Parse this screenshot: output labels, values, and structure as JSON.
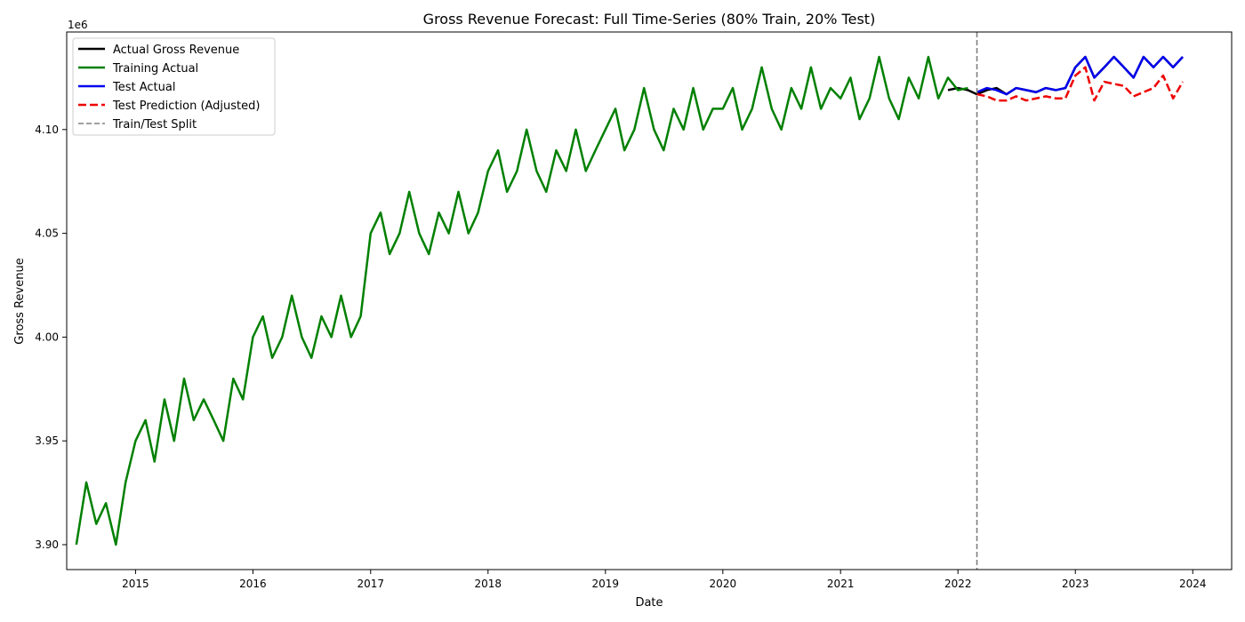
{
  "chart_data": {
    "type": "line",
    "title": "Gross Revenue Forecast: Full Time-Series (80% Train, 20% Test)",
    "xlabel": "Date",
    "ylabel": "Gross Revenue",
    "y_offset_label": "1e6",
    "xlim": [
      "2014-06-01",
      "2024-05-01"
    ],
    "ylim": [
      3.888,
      4.147
    ],
    "y_ticks": [
      3.9,
      3.95,
      4.0,
      4.05,
      4.1
    ],
    "y_tick_labels": [
      "3.90",
      "3.95",
      "4.00",
      "4.05",
      "4.10"
    ],
    "x_ticks": [
      "2015-01-01",
      "2016-01-01",
      "2017-01-01",
      "2018-01-01",
      "2019-01-01",
      "2020-01-01",
      "2021-01-01",
      "2022-01-01",
      "2023-01-01",
      "2024-01-01"
    ],
    "x_tick_labels": [
      "2015",
      "2016",
      "2017",
      "2018",
      "2019",
      "2020",
      "2021",
      "2022",
      "2023",
      "2024"
    ],
    "grid": false,
    "legend_position": "top-left",
    "split_date": "2022-03-01",
    "series": [
      {
        "name": "Actual Gross Revenue",
        "color": "#000000",
        "dash": "solid",
        "points": [
          [
            "2021-12-01",
            4.119
          ],
          [
            "2022-01-01",
            4.12
          ],
          [
            "2022-02-01",
            4.119
          ],
          [
            "2022-03-01",
            4.117
          ],
          [
            "2022-04-01",
            4.119
          ],
          [
            "2022-05-01",
            4.12
          ],
          [
            "2022-06-01",
            4.117
          ],
          [
            "2022-07-01",
            4.12
          ],
          [
            "2022-08-01",
            4.119
          ],
          [
            "2022-09-01",
            4.118
          ],
          [
            "2022-10-01",
            4.12
          ],
          [
            "2022-11-01",
            4.119
          ],
          [
            "2022-12-01",
            4.12
          ],
          [
            "2023-01-01",
            4.13
          ],
          [
            "2023-02-01",
            4.135
          ],
          [
            "2023-03-01",
            4.125
          ],
          [
            "2023-04-01",
            4.13
          ],
          [
            "2023-05-01",
            4.135
          ],
          [
            "2023-06-01",
            4.13
          ],
          [
            "2023-07-01",
            4.125
          ],
          [
            "2023-08-01",
            4.135
          ],
          [
            "2023-09-01",
            4.13
          ],
          [
            "2023-10-01",
            4.135
          ],
          [
            "2023-11-01",
            4.13
          ],
          [
            "2023-12-01",
            4.135
          ]
        ]
      },
      {
        "name": "Training Actual",
        "color": "#008000",
        "dash": "solid",
        "points": [
          [
            "2014-07-01",
            3.9
          ],
          [
            "2014-08-01",
            3.93
          ],
          [
            "2014-09-01",
            3.91
          ],
          [
            "2014-10-01",
            3.92
          ],
          [
            "2014-11-01",
            3.9
          ],
          [
            "2014-12-01",
            3.93
          ],
          [
            "2015-01-01",
            3.95
          ],
          [
            "2015-02-01",
            3.96
          ],
          [
            "2015-03-01",
            3.94
          ],
          [
            "2015-04-01",
            3.97
          ],
          [
            "2015-05-01",
            3.95
          ],
          [
            "2015-06-01",
            3.98
          ],
          [
            "2015-07-01",
            3.96
          ],
          [
            "2015-08-01",
            3.97
          ],
          [
            "2015-09-01",
            3.96
          ],
          [
            "2015-10-01",
            3.95
          ],
          [
            "2015-11-01",
            3.98
          ],
          [
            "2015-12-01",
            3.97
          ],
          [
            "2016-01-01",
            4.0
          ],
          [
            "2016-02-01",
            4.01
          ],
          [
            "2016-03-01",
            3.99
          ],
          [
            "2016-04-01",
            4.0
          ],
          [
            "2016-05-01",
            4.02
          ],
          [
            "2016-06-01",
            4.0
          ],
          [
            "2016-07-01",
            3.99
          ],
          [
            "2016-08-01",
            4.01
          ],
          [
            "2016-09-01",
            4.0
          ],
          [
            "2016-10-01",
            4.02
          ],
          [
            "2016-11-01",
            4.0
          ],
          [
            "2016-12-01",
            4.01
          ],
          [
            "2017-01-01",
            4.05
          ],
          [
            "2017-02-01",
            4.06
          ],
          [
            "2017-03-01",
            4.04
          ],
          [
            "2017-04-01",
            4.05
          ],
          [
            "2017-05-01",
            4.07
          ],
          [
            "2017-06-01",
            4.05
          ],
          [
            "2017-07-01",
            4.04
          ],
          [
            "2017-08-01",
            4.06
          ],
          [
            "2017-09-01",
            4.05
          ],
          [
            "2017-10-01",
            4.07
          ],
          [
            "2017-11-01",
            4.05
          ],
          [
            "2017-12-01",
            4.06
          ],
          [
            "2018-01-01",
            4.08
          ],
          [
            "2018-02-01",
            4.09
          ],
          [
            "2018-03-01",
            4.07
          ],
          [
            "2018-04-01",
            4.08
          ],
          [
            "2018-05-01",
            4.1
          ],
          [
            "2018-06-01",
            4.08
          ],
          [
            "2018-07-01",
            4.07
          ],
          [
            "2018-08-01",
            4.09
          ],
          [
            "2018-09-01",
            4.08
          ],
          [
            "2018-10-01",
            4.1
          ],
          [
            "2018-11-01",
            4.08
          ],
          [
            "2018-12-01",
            4.09
          ],
          [
            "2019-01-01",
            4.1
          ],
          [
            "2019-02-01",
            4.11
          ],
          [
            "2019-03-01",
            4.09
          ],
          [
            "2019-04-01",
            4.1
          ],
          [
            "2019-05-01",
            4.12
          ],
          [
            "2019-06-01",
            4.1
          ],
          [
            "2019-07-01",
            4.09
          ],
          [
            "2019-08-01",
            4.11
          ],
          [
            "2019-09-01",
            4.1
          ],
          [
            "2019-10-01",
            4.12
          ],
          [
            "2019-11-01",
            4.1
          ],
          [
            "2019-12-01",
            4.11
          ],
          [
            "2020-01-01",
            4.11
          ],
          [
            "2020-02-01",
            4.12
          ],
          [
            "2020-03-01",
            4.1
          ],
          [
            "2020-04-01",
            4.11
          ],
          [
            "2020-05-01",
            4.13
          ],
          [
            "2020-06-01",
            4.11
          ],
          [
            "2020-07-01",
            4.1
          ],
          [
            "2020-08-01",
            4.12
          ],
          [
            "2020-09-01",
            4.11
          ],
          [
            "2020-10-01",
            4.13
          ],
          [
            "2020-11-01",
            4.11
          ],
          [
            "2020-12-01",
            4.12
          ],
          [
            "2021-01-01",
            4.115
          ],
          [
            "2021-02-01",
            4.125
          ],
          [
            "2021-03-01",
            4.105
          ],
          [
            "2021-04-01",
            4.115
          ],
          [
            "2021-05-01",
            4.135
          ],
          [
            "2021-06-01",
            4.115
          ],
          [
            "2021-07-01",
            4.105
          ],
          [
            "2021-08-01",
            4.125
          ],
          [
            "2021-09-01",
            4.115
          ],
          [
            "2021-10-01",
            4.135
          ],
          [
            "2021-11-01",
            4.115
          ],
          [
            "2021-12-01",
            4.125
          ],
          [
            "2022-01-01",
            4.119
          ],
          [
            "2022-02-01",
            4.12
          ]
        ]
      },
      {
        "name": "Test Actual",
        "color": "#0000ee",
        "dash": "solid",
        "points": [
          [
            "2022-03-01",
            4.118
          ],
          [
            "2022-04-01",
            4.12
          ],
          [
            "2022-05-01",
            4.119
          ],
          [
            "2022-06-01",
            4.117
          ],
          [
            "2022-07-01",
            4.12
          ],
          [
            "2022-08-01",
            4.119
          ],
          [
            "2022-09-01",
            4.118
          ],
          [
            "2022-10-01",
            4.12
          ],
          [
            "2022-11-01",
            4.119
          ],
          [
            "2022-12-01",
            4.12
          ],
          [
            "2023-01-01",
            4.13
          ],
          [
            "2023-02-01",
            4.135
          ],
          [
            "2023-03-01",
            4.125
          ],
          [
            "2023-04-01",
            4.13
          ],
          [
            "2023-05-01",
            4.135
          ],
          [
            "2023-06-01",
            4.13
          ],
          [
            "2023-07-01",
            4.125
          ],
          [
            "2023-08-01",
            4.135
          ],
          [
            "2023-09-01",
            4.13
          ],
          [
            "2023-10-01",
            4.135
          ],
          [
            "2023-11-01",
            4.13
          ],
          [
            "2023-12-01",
            4.135
          ]
        ]
      },
      {
        "name": "Test Prediction (Adjusted)",
        "color": "#ee0000",
        "dash": "dashed",
        "points": [
          [
            "2022-03-01",
            4.117
          ],
          [
            "2022-04-01",
            4.116
          ],
          [
            "2022-05-01",
            4.114
          ],
          [
            "2022-06-01",
            4.114
          ],
          [
            "2022-07-01",
            4.116
          ],
          [
            "2022-08-01",
            4.114
          ],
          [
            "2022-09-01",
            4.115
          ],
          [
            "2022-10-01",
            4.116
          ],
          [
            "2022-11-01",
            4.115
          ],
          [
            "2022-12-01",
            4.115
          ],
          [
            "2023-01-01",
            4.126
          ],
          [
            "2023-02-01",
            4.13
          ],
          [
            "2023-03-01",
            4.114
          ],
          [
            "2023-04-01",
            4.123
          ],
          [
            "2023-05-01",
            4.122
          ],
          [
            "2023-06-01",
            4.121
          ],
          [
            "2023-07-01",
            4.116
          ],
          [
            "2023-08-01",
            4.118
          ],
          [
            "2023-09-01",
            4.12
          ],
          [
            "2023-10-01",
            4.126
          ],
          [
            "2023-11-01",
            4.115
          ],
          [
            "2023-12-01",
            4.123
          ]
        ]
      }
    ],
    "legend": [
      {
        "label": "Actual Gross Revenue",
        "color": "#000000",
        "dash": "solid"
      },
      {
        "label": "Training Actual",
        "color": "#008000",
        "dash": "solid"
      },
      {
        "label": "Test Actual",
        "color": "#0000ee",
        "dash": "solid"
      },
      {
        "label": "Test Prediction (Adjusted)",
        "color": "#ee0000",
        "dash": "dashed"
      },
      {
        "label": "Train/Test Split",
        "color": "#808080",
        "dash": "dashed"
      }
    ]
  }
}
